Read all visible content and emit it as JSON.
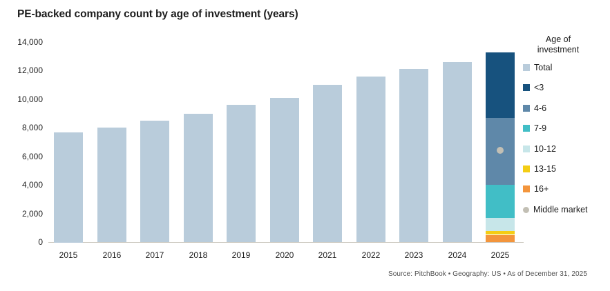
{
  "title": "PE-backed company count by age of investment (years)",
  "source_line": "Source: PitchBook  •  Geography: US  •  As of December 31, 2025",
  "legend": {
    "title_line1": "Age of",
    "title_line2": "investment",
    "items": [
      {
        "label": "Total",
        "color": "#B9CCDB",
        "shape": "square"
      },
      {
        "label": "<3",
        "color": "#17527E",
        "shape": "square"
      },
      {
        "label": "4-6",
        "color": "#5F88A9",
        "shape": "square"
      },
      {
        "label": "7-9",
        "color": "#41BEC6",
        "shape": "square"
      },
      {
        "label": "10-12",
        "color": "#C7E6E9",
        "shape": "square"
      },
      {
        "label": "13-15",
        "color": "#F4CD15",
        "shape": "square"
      },
      {
        "label": "16+",
        "color": "#F3953C",
        "shape": "square"
      },
      {
        "label": "Middle market",
        "color": "#C2BFB4",
        "shape": "circle"
      }
    ]
  },
  "chart_data": {
    "type": "bar",
    "title": "PE-backed company count by age of investment (years)",
    "categories": [
      "2015",
      "2016",
      "2017",
      "2018",
      "2019",
      "2020",
      "2021",
      "2022",
      "2023",
      "2024",
      "2025"
    ],
    "series": [
      {
        "name": "Total",
        "color": "#B9CCDB",
        "values": [
          7700,
          8000,
          8500,
          9000,
          9600,
          10100,
          11000,
          11600,
          12100,
          12600,
          null
        ]
      }
    ],
    "stacked_bar_2025": {
      "category": "2025",
      "total": 13300,
      "segments_bottom_to_top": [
        {
          "label": "16+",
          "value": 500,
          "color": "#F3953C"
        },
        {
          "label": "13-15",
          "value": 300,
          "color": "#F4CD15"
        },
        {
          "label": "10-12",
          "value": 900,
          "color": "#C7E6E9"
        },
        {
          "label": "7-9",
          "value": 2300,
          "color": "#41BEC6"
        },
        {
          "label": "4-6",
          "value": 4700,
          "color": "#5F88A9"
        },
        {
          "label": "<3",
          "value": 4600,
          "color": "#17527E"
        }
      ]
    },
    "point_marker": {
      "label": "Middle market",
      "category": "2025",
      "value": 6400,
      "color": "#C2BFB4"
    },
    "xlabel": "",
    "ylabel": "",
    "ylim": [
      0,
      14000
    ],
    "ytick_values": [
      0,
      2000,
      4000,
      6000,
      8000,
      10000,
      12000,
      14000
    ],
    "ytick_labels": [
      "0",
      "2,000",
      "4,000",
      "6,000",
      "8,000",
      "10,000",
      "12,000",
      "14,000"
    ],
    "grid": false,
    "legend_position": "right",
    "axis_line_color": "#C9C5BC"
  }
}
